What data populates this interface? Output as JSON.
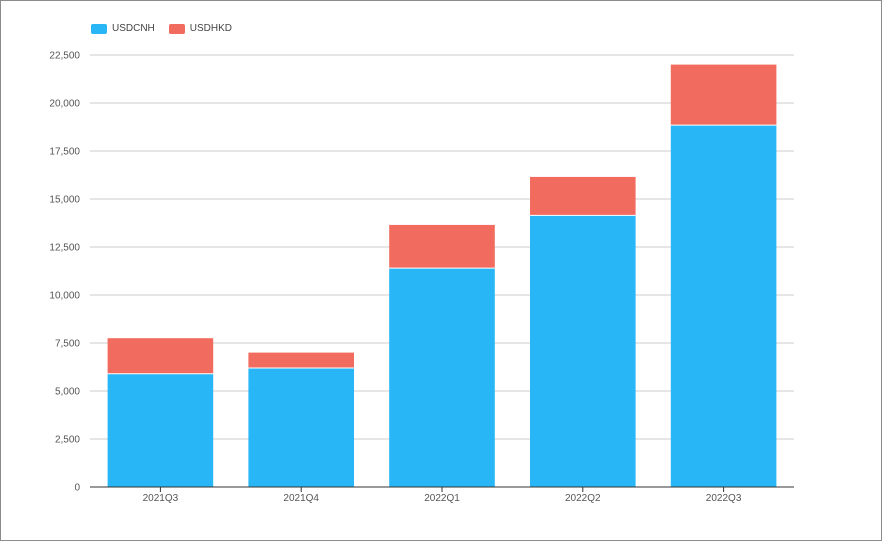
{
  "chart_data": {
    "type": "bar",
    "stacked": true,
    "categories": [
      "2021Q3",
      "2021Q4",
      "2022Q1",
      "2022Q2",
      "2022Q3"
    ],
    "series": [
      {
        "name": "USDCNH",
        "color": "#29b6f6",
        "values": [
          5900,
          6200,
          11400,
          14150,
          18850
        ]
      },
      {
        "name": "USDHKD",
        "color": "#f26b5f",
        "values": [
          1850,
          800,
          2250,
          2000,
          3150
        ]
      }
    ],
    "ylim": [
      0,
      22500
    ],
    "yticks": [
      0,
      2500,
      5000,
      7500,
      10000,
      12500,
      15000,
      17500,
      20000,
      22500
    ],
    "ytick_labels": [
      "0",
      "2,500",
      "5,000",
      "7,500",
      "10,000",
      "12,500",
      "15,000",
      "17,500",
      "20,000",
      "22,500"
    ],
    "grid": true,
    "legend_position": "top-left"
  }
}
